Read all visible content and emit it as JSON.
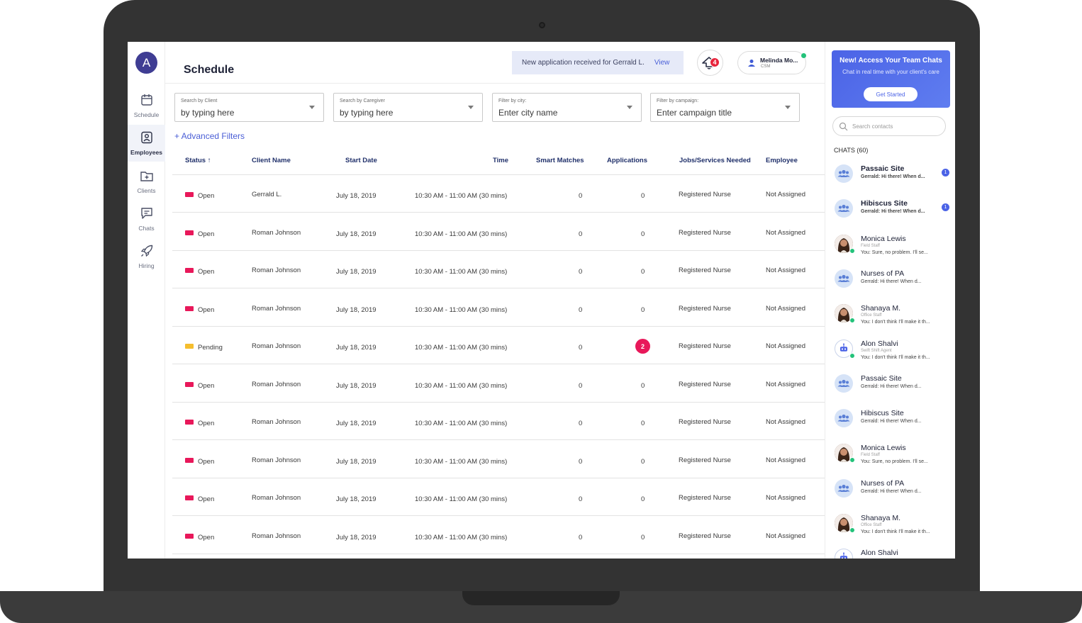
{
  "nav": {
    "avatar_letter": "A",
    "items": [
      {
        "label": "Schedule",
        "icon": "calendar-icon"
      },
      {
        "label": "Employees",
        "icon": "employee-badge-icon",
        "active": true
      },
      {
        "label": "Clients",
        "icon": "folder-add-icon"
      },
      {
        "label": "Chats",
        "icon": "chat-icon"
      },
      {
        "label": "Hiring",
        "icon": "rocket-icon"
      }
    ]
  },
  "header": {
    "title": "Schedule",
    "notice_text": "New application received for Gerrald L.",
    "notice_link": "View",
    "notification_count": "4",
    "user_name": "Melinda Mo...",
    "user_role": "CSM"
  },
  "filters": [
    {
      "caption": "Search by Client",
      "value": "by typing here"
    },
    {
      "caption": "Search by Caregiver",
      "value": "by typing here"
    },
    {
      "caption": "Filter by city:",
      "value": "Enter city name"
    },
    {
      "caption": "Filter by campaign:",
      "value": "Enter campaign title"
    }
  ],
  "advanced_filters": "+ Advanced Filters",
  "table": {
    "columns": [
      "Status",
      "Client Name",
      "Start Date",
      "Time",
      "Smart Matches",
      "Applications",
      "Jobs/Services Needed",
      "Employee"
    ],
    "sort_indicator": "↑",
    "rows": [
      {
        "status": "Open",
        "client": "Gerrald L.",
        "date": "July 18, 2019",
        "time": "10:30 AM - 11:00 AM (30 mins)",
        "matches": "0",
        "applications": "0",
        "service": "Registered Nurse",
        "employee": "Not Assigned"
      },
      {
        "status": "Open",
        "client": "Roman Johnson",
        "date": "July 18, 2019",
        "time": "10:30 AM - 11:00 AM (30 mins)",
        "matches": "0",
        "applications": "0",
        "service": "Registered Nurse",
        "employee": "Not Assigned"
      },
      {
        "status": "Open",
        "client": "Roman Johnson",
        "date": "July 18, 2019",
        "time": "10:30 AM - 11:00 AM (30 mins)",
        "matches": "0",
        "applications": "0",
        "service": "Registered Nurse",
        "employee": "Not Assigned"
      },
      {
        "status": "Open",
        "client": "Roman Johnson",
        "date": "July 18, 2019",
        "time": "10:30 AM - 11:00 AM (30 mins)",
        "matches": "0",
        "applications": "0",
        "service": "Registered Nurse",
        "employee": "Not Assigned"
      },
      {
        "status": "Pending",
        "client": "Roman Johnson",
        "date": "July 18, 2019",
        "time": "10:30 AM - 11:00 AM (30 mins)",
        "matches": "0",
        "applications": "2",
        "service": "Registered Nurse",
        "employee": "Not Assigned"
      },
      {
        "status": "Open",
        "client": "Roman Johnson",
        "date": "July 18, 2019",
        "time": "10:30 AM - 11:00 AM (30 mins)",
        "matches": "0",
        "applications": "0",
        "service": "Registered Nurse",
        "employee": "Not Assigned"
      },
      {
        "status": "Open",
        "client": "Roman Johnson",
        "date": "July 18, 2019",
        "time": "10:30 AM - 11:00 AM (30 mins)",
        "matches": "0",
        "applications": "0",
        "service": "Registered Nurse",
        "employee": "Not Assigned"
      },
      {
        "status": "Open",
        "client": "Roman Johnson",
        "date": "July 18, 2019",
        "time": "10:30 AM - 11:00 AM (30 mins)",
        "matches": "0",
        "applications": "0",
        "service": "Registered Nurse",
        "employee": "Not Assigned"
      },
      {
        "status": "Open",
        "client": "Roman Johnson",
        "date": "July 18, 2019",
        "time": "10:30 AM - 11:00 AM (30 mins)",
        "matches": "0",
        "applications": "0",
        "service": "Registered Nurse",
        "employee": "Not Assigned"
      },
      {
        "status": "Open",
        "client": "Roman Johnson",
        "date": "July 18, 2019",
        "time": "10:30 AM - 11:00 AM (30 mins)",
        "matches": "0",
        "applications": "0",
        "service": "Registered Nurse",
        "employee": "Not Assigned"
      }
    ]
  },
  "colors": {
    "open": "#e8185a",
    "pending": "#f5be2e",
    "accent": "#4b63e6"
  },
  "chat": {
    "promo_title": "New! Access Your Team Chats",
    "promo_sub": "Chat in real time with your client's care",
    "promo_button": "Get Started",
    "search_placeholder": "Search contacts",
    "count_label": "CHATS (60)",
    "contacts": [
      {
        "name": "Passaic Site",
        "role": "",
        "msg": "Gerrald: Hi there! When d...",
        "kind": "group",
        "bold": true,
        "unread": "1"
      },
      {
        "name": "Hibiscus Site",
        "role": "",
        "msg": "Gerrald: Hi there! When d...",
        "kind": "group",
        "bold": true,
        "unread": "1"
      },
      {
        "name": "Monica Lewis",
        "role": "Field Staff",
        "msg": "You: Sure, no problem. I'll se...",
        "kind": "photo"
      },
      {
        "name": "Nurses of PA",
        "role": "",
        "msg": "Gerrald: Hi there! When d...",
        "kind": "group"
      },
      {
        "name": "Shanaya M.",
        "role": "Office Staff",
        "msg": "You: I don't think I'll make it th...",
        "kind": "photo"
      },
      {
        "name": "Alon Shalvi",
        "role": "Swift Shift Agent",
        "msg": "You: I don't think I'll make it th...",
        "kind": "bot"
      },
      {
        "name": "Passaic Site",
        "role": "",
        "msg": "Gerrald: Hi there! When d...",
        "kind": "group"
      },
      {
        "name": "Hibiscus Site",
        "role": "",
        "msg": "Gerrald: Hi there! When d...",
        "kind": "group"
      },
      {
        "name": "Monica Lewis",
        "role": "Field Staff",
        "msg": "You: Sure, no problem. I'll se...",
        "kind": "photo"
      },
      {
        "name": "Nurses of PA",
        "role": "",
        "msg": "Gerrald: Hi there! When d...",
        "kind": "group"
      },
      {
        "name": "Shanaya M.",
        "role": "Office Staff",
        "msg": "You: I don't think I'll make it th...",
        "kind": "photo"
      },
      {
        "name": "Alon Shalvi",
        "role": "",
        "msg": "",
        "kind": "bot"
      }
    ]
  }
}
